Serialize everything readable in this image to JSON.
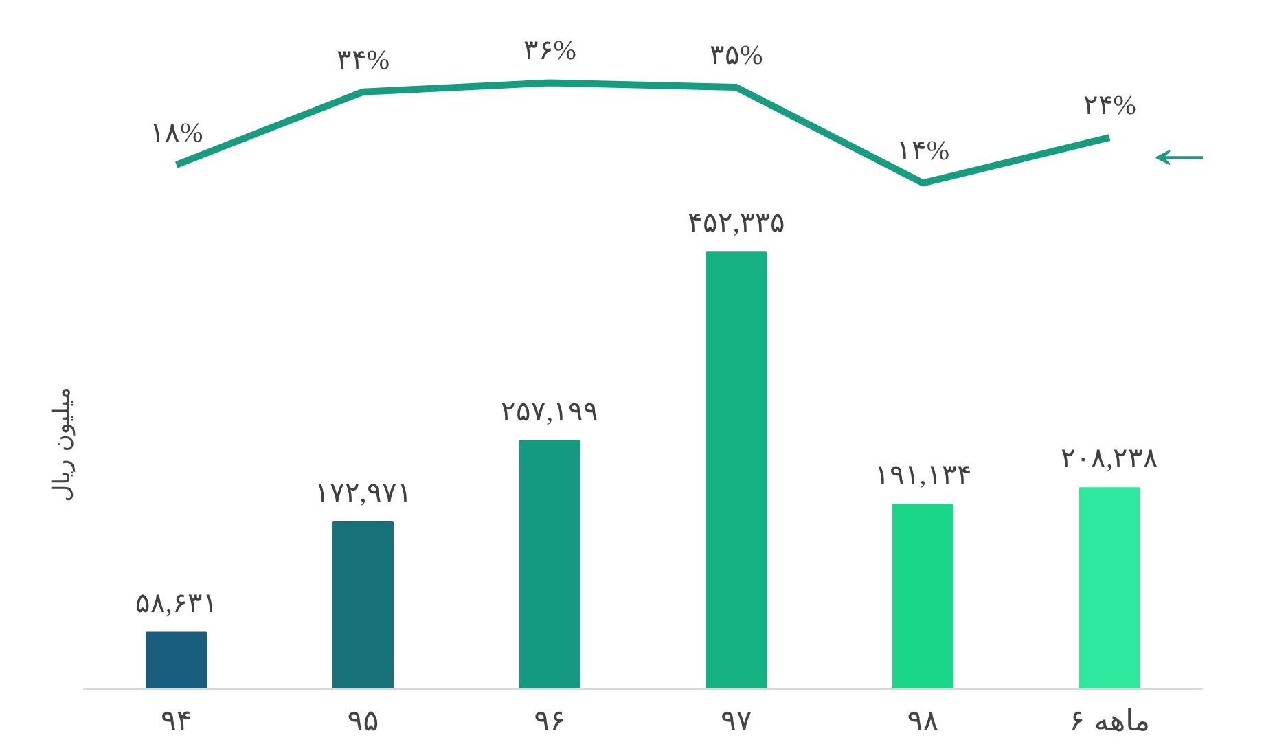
{
  "chart_data": [
    {
      "type": "line",
      "categories": [
        null,
        null,
        null,
        null,
        null,
        null
      ],
      "tick_labels": false,
      "color": "#169c7f",
      "values": [
        18,
        34,
        36,
        35,
        14,
        24
      ],
      "value_labels": [
        "۱۸%",
        "۳۴%",
        "۳۶%",
        "۳۵%",
        "۱۴%",
        "۲۴%"
      ]
    },
    {
      "type": "bar",
      "ylabel": "میلیون ریال",
      "categories": [
        "۹۴",
        "۹۵",
        "۹۶",
        "۹۷",
        "۹۸",
        "۶ ماهه"
      ],
      "colors": [
        "#1a5e7f",
        "#177178",
        "#149a80",
        "#16b183",
        "#19d689",
        "#2ee89d"
      ],
      "values": [
        58631,
        172971,
        257199,
        452335,
        191134,
        208238
      ],
      "value_labels": [
        "۵۸,۶۳۱",
        "۱۷۲,۹۷۱",
        "۲۵۷,۱۹۹",
        "۴۵۲,۳۳۵",
        "۱۹۱,۱۳۴",
        "۲۰۸,۲۳۸"
      ]
    }
  ]
}
